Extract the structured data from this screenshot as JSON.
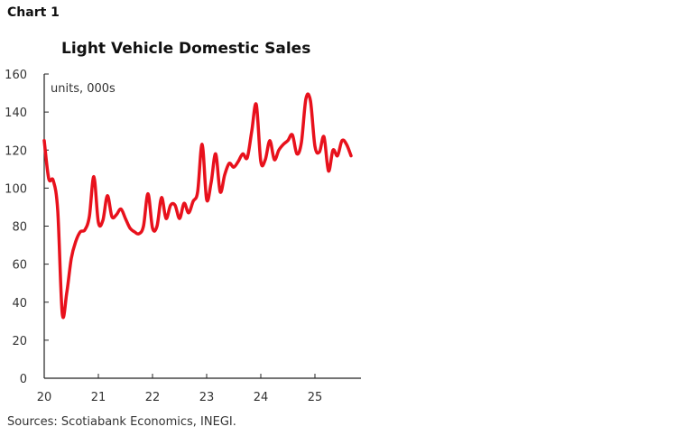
{
  "chart_label": "Chart 1",
  "sources": "Sources: Scotiabank Economics, INEGI.",
  "chart_data": {
    "type": "line",
    "title": "Light Vehicle Domestic Sales",
    "unit_label": "units, 000s",
    "xlabel": "",
    "ylabel": "",
    "ylim": [
      0,
      160
    ],
    "yticks": [
      0,
      20,
      40,
      60,
      80,
      100,
      120,
      140,
      160
    ],
    "xticks": [
      "20",
      "21",
      "22",
      "23",
      "24",
      "25"
    ],
    "grid": false,
    "start": "2020-01",
    "frequency": "monthly",
    "series": [
      {
        "color": "#e8111c",
        "values": [
          125,
          105,
          104,
          88,
          34,
          45,
          63,
          72,
          77,
          78,
          85,
          106,
          82,
          83,
          96,
          85,
          86,
          89,
          84,
          79,
          77,
          76,
          80,
          97,
          79,
          80,
          95,
          84,
          91,
          91,
          84,
          92,
          87,
          93,
          98,
          123,
          94,
          103,
          118,
          98,
          107,
          113,
          111,
          114,
          118,
          116,
          130,
          144,
          114,
          115,
          125,
          115,
          120,
          123,
          125,
          128,
          118,
          124,
          147,
          146,
          122,
          119,
          127,
          109,
          120,
          117,
          125,
          123,
          117
        ]
      }
    ]
  }
}
